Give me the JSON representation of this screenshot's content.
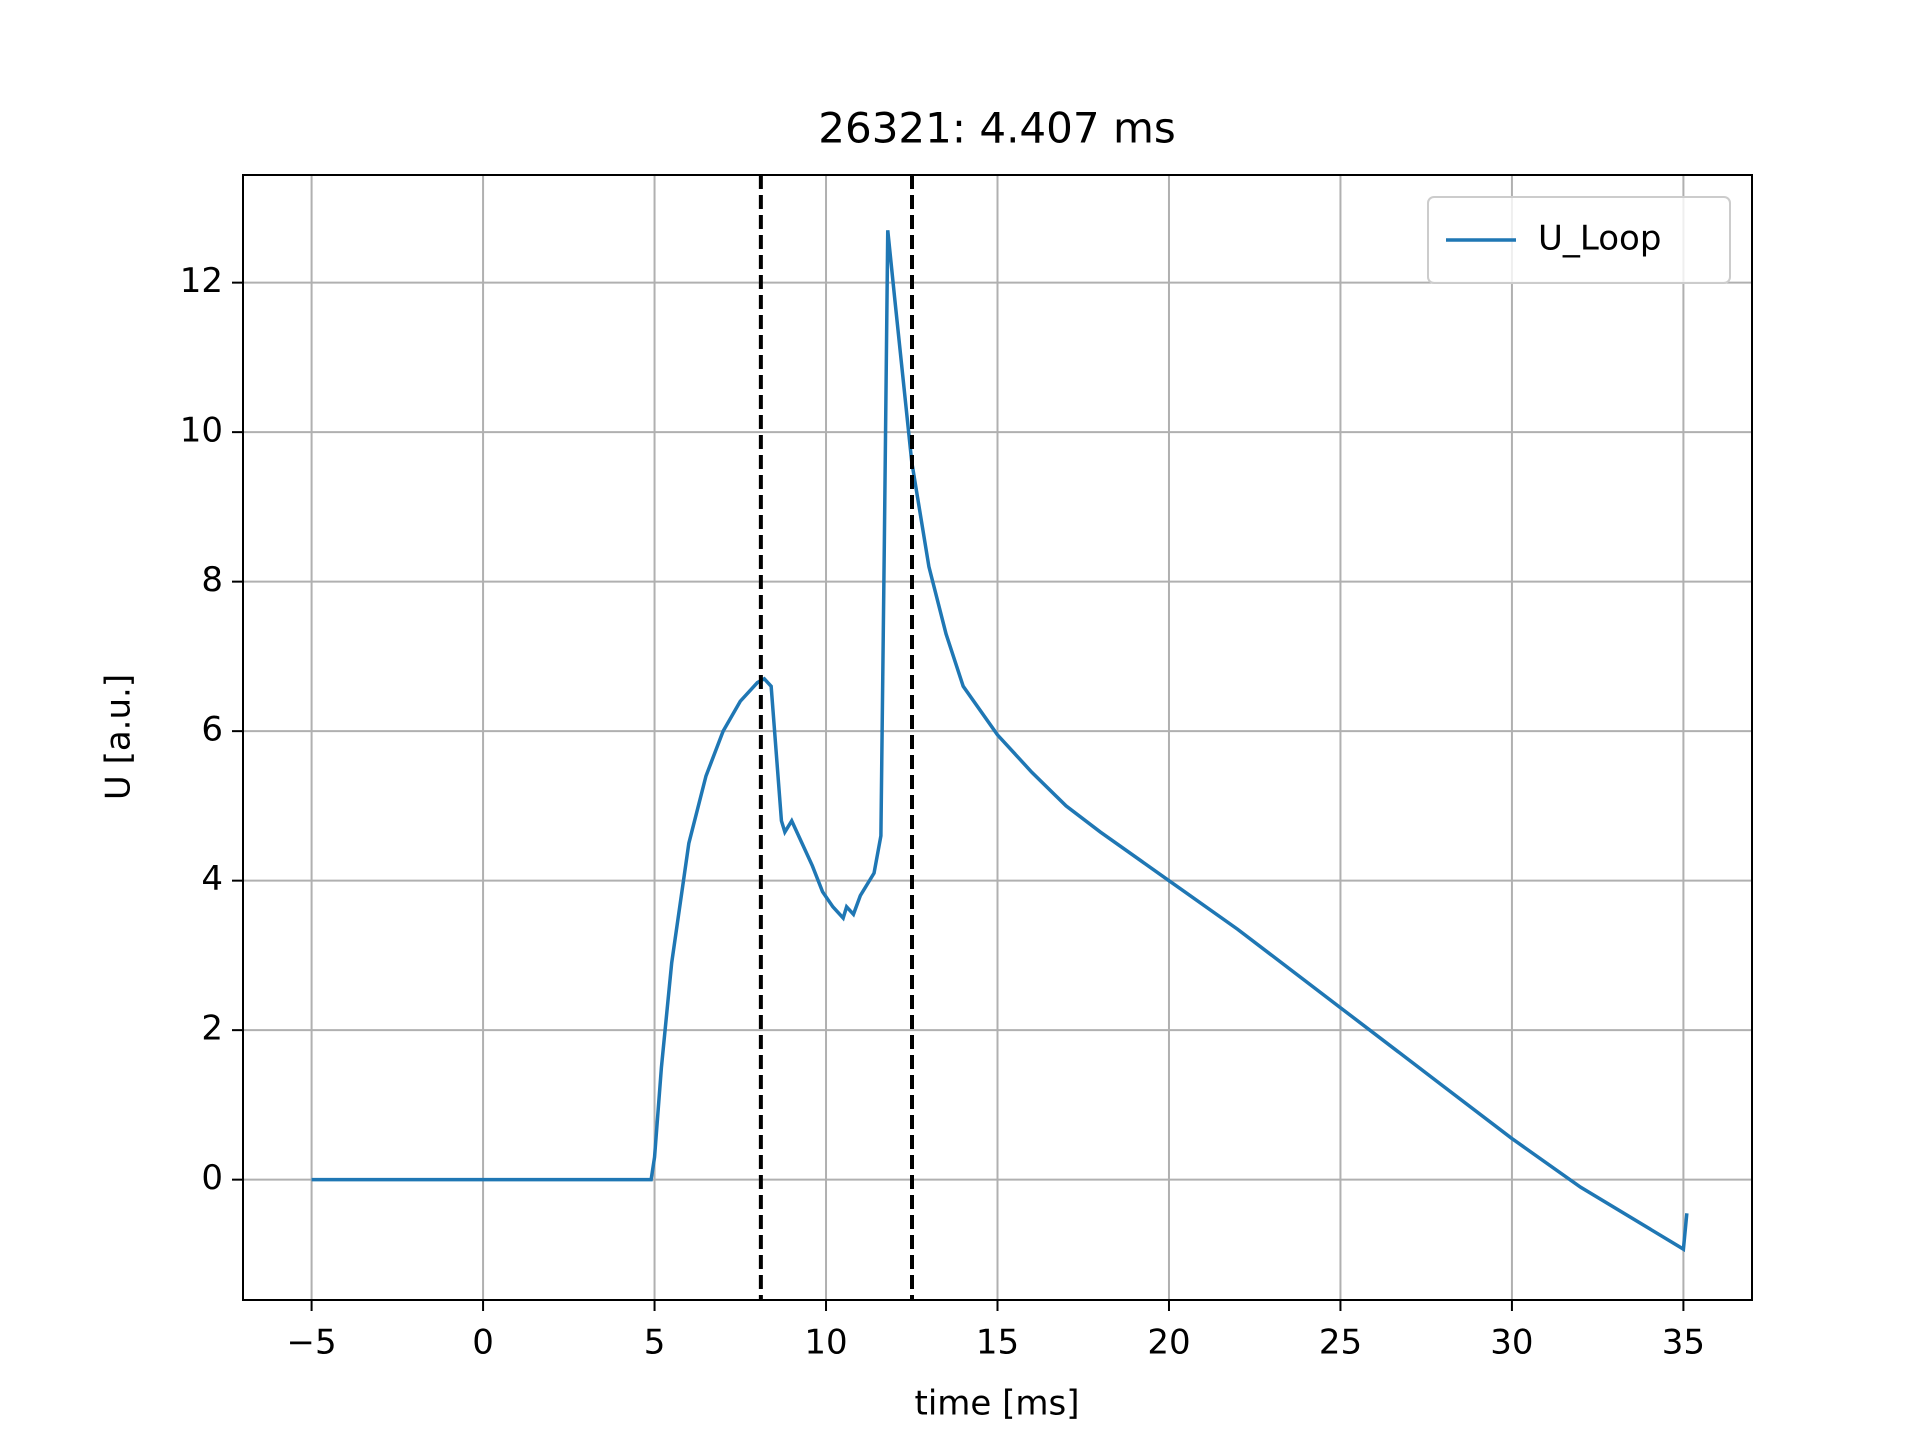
{
  "chart_data": {
    "type": "line",
    "title": "26321: 4.407 ms",
    "xlabel": "time [ms]",
    "ylabel": "U [a.u.]",
    "x": [
      -5,
      0,
      4.9,
      5.0,
      5.2,
      5.5,
      6,
      6.5,
      7,
      7.5,
      8,
      8.2,
      8.4,
      8.5,
      8.7,
      8.8,
      9.0,
      9.3,
      9.6,
      9.9,
      10.2,
      10.5,
      10.6,
      10.8,
      11.0,
      11.2,
      11.4,
      11.6,
      11.7,
      11.8,
      12.0,
      12.5,
      13,
      13.5,
      14,
      15,
      16,
      17,
      18,
      20,
      22,
      25,
      28,
      30,
      32,
      35,
      35.1
    ],
    "series": [
      {
        "name": "U_Loop",
        "color": "#1f77b4",
        "values": [
          0,
          0,
          0,
          0.3,
          1.5,
          2.9,
          4.5,
          5.4,
          6.0,
          6.4,
          6.65,
          6.7,
          6.6,
          6.0,
          4.8,
          4.65,
          4.8,
          4.5,
          4.2,
          3.85,
          3.65,
          3.5,
          3.65,
          3.55,
          3.8,
          3.95,
          4.1,
          4.6,
          8.5,
          12.7,
          11.8,
          9.6,
          8.2,
          7.3,
          6.6,
          5.95,
          5.45,
          5.0,
          4.65,
          4.0,
          3.35,
          2.3,
          1.25,
          0.55,
          -0.1,
          -0.93,
          -0.45
        ]
      }
    ],
    "vlines": [
      8.1,
      12.507
    ],
    "xlim": [
      -7,
      37
    ],
    "ylim": [
      -1.61,
      13.44
    ],
    "xticks": [
      {
        "value": -5,
        "label": "−5"
      },
      0,
      5,
      10,
      15,
      20,
      25,
      30,
      35
    ],
    "yticks": [
      0,
      2,
      4,
      6,
      8,
      10,
      12
    ],
    "grid": true,
    "legend": "upper right"
  }
}
